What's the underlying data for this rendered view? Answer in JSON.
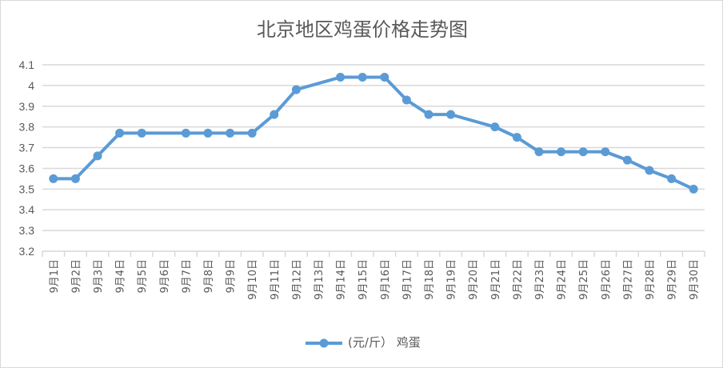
{
  "chart_data": {
    "type": "line",
    "title": "北京地区鸡蛋价格走势图",
    "categories": [
      "9月1日",
      "9月2日",
      "9月3日",
      "9月4日",
      "9月5日",
      "9月6日",
      "9月7日",
      "9月8日",
      "9月9日",
      "9月10日",
      "9月11日",
      "9月12日",
      "9月13日",
      "9月14日",
      "9月15日",
      "9月16日",
      "9月17日",
      "9月18日",
      "9月19日",
      "9月20日",
      "9月21日",
      "9月22日",
      "9月23日",
      "9月24日",
      "9月25日",
      "9月26日",
      "9月27日",
      "9月28日",
      "9月29日",
      "9月30日"
    ],
    "series": [
      {
        "name": "(元/斤） 鸡蛋",
        "color": "#5b9bd5",
        "values": [
          3.55,
          3.55,
          3.66,
          3.77,
          3.77,
          null,
          3.77,
          3.77,
          3.77,
          3.77,
          3.86,
          3.98,
          null,
          4.04,
          4.04,
          4.04,
          3.93,
          3.86,
          3.86,
          null,
          3.8,
          3.75,
          3.68,
          3.68,
          3.68,
          3.68,
          3.64,
          3.59,
          3.55,
          3.5
        ]
      }
    ],
    "ylim": [
      3.2,
      4.1
    ],
    "yticks": [
      "3.2",
      "3.3",
      "3.4",
      "3.5",
      "3.6",
      "3.7",
      "3.8",
      "3.9",
      "4",
      "4.1"
    ],
    "grid": true,
    "legend": "bottom"
  }
}
